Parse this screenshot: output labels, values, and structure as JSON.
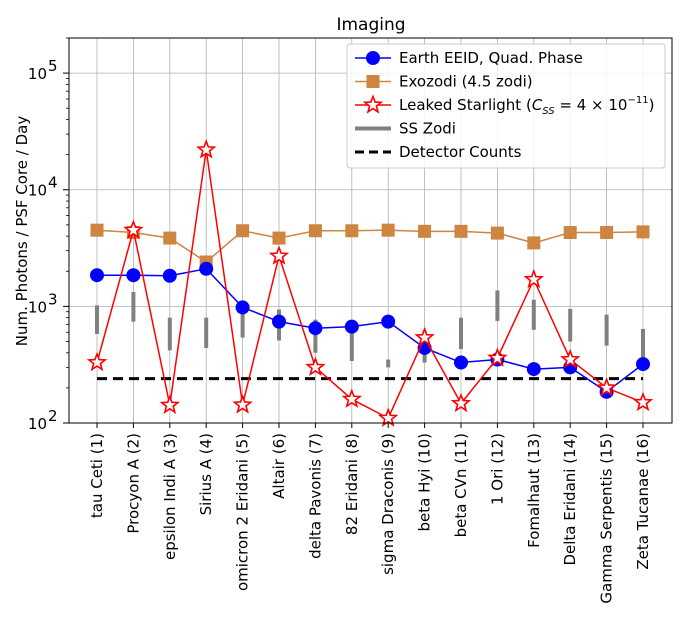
{
  "chart_data": {
    "type": "line",
    "title": "Imaging",
    "xlabel": "",
    "ylabel": "Num. Photons / PSF Core / Day",
    "yscale": "log",
    "ylim": [
      100,
      200000
    ],
    "yticks": [
      100,
      1000,
      10000,
      100000
    ],
    "ytick_labels": [
      {
        "base": "10",
        "exp": "2"
      },
      {
        "base": "10",
        "exp": "3"
      },
      {
        "base": "10",
        "exp": "4"
      },
      {
        "base": "10",
        "exp": "5"
      }
    ],
    "grid": true,
    "legend_position": "top-right",
    "categories": [
      "tau Ceti (1)",
      "Procyon A (2)",
      "epsilon Indi A (3)",
      "Sirius A (4)",
      "omicron 2 Eridani (5)",
      "Altair (6)",
      "delta Pavonis (7)",
      "82 Eridani (8)",
      "sigma Draconis (9)",
      "beta Hyi (10)",
      "beta CVn (11)",
      "1 Ori (12)",
      "Fomalhaut (13)",
      "Delta Eridani (14)",
      "Gamma Serpentis (15)",
      "Zeta Tucanae (16)"
    ],
    "series": [
      {
        "name": "Earth EEID, Quad. Phase",
        "style": "line-circle",
        "color": "#0000ff",
        "values": [
          1850,
          1850,
          1830,
          2100,
          980,
          740,
          650,
          670,
          740,
          440,
          330,
          350,
          290,
          300,
          185,
          320
        ]
      },
      {
        "name": "Exozodi (4.5 zodi)",
        "style": "line-square",
        "color": "#cd853f",
        "values": [
          4500,
          4300,
          3850,
          2400,
          4450,
          3850,
          4450,
          4450,
          4500,
          4400,
          4400,
          4250,
          3500,
          4300,
          4300,
          4350
        ]
      },
      {
        "name": "Leaked Starlight",
        "legend_prefix": "Leaked Starlight (",
        "legend_suffix": ")",
        "legend_math_lhs": "C",
        "legend_math_sub": "SS",
        "legend_math_rhs": "= 4 × 10",
        "legend_math_exp": "−11",
        "style": "line-star",
        "color": "#ff0000",
        "values": [
          330,
          4500,
          142,
          22000,
          143,
          2700,
          300,
          160,
          110,
          540,
          147,
          360,
          1700,
          350,
          200,
          150
        ]
      },
      {
        "name": "SS Zodi",
        "style": "vertical-bar",
        "color": "#808080",
        "ranges": [
          [
            580,
            1020
          ],
          [
            740,
            1330
          ],
          [
            420,
            800
          ],
          [
            440,
            800
          ],
          [
            540,
            1000
          ],
          [
            510,
            940
          ],
          [
            400,
            770
          ],
          [
            340,
            760
          ],
          [
            300,
            350
          ],
          [
            330,
            620
          ],
          [
            430,
            800
          ],
          [
            750,
            1370
          ],
          [
            630,
            1140
          ],
          [
            500,
            950
          ],
          [
            460,
            850
          ],
          [
            340,
            640
          ]
        ]
      },
      {
        "name": "Detector Counts",
        "style": "dashed-line",
        "color": "#000000",
        "value": 240
      }
    ]
  }
}
